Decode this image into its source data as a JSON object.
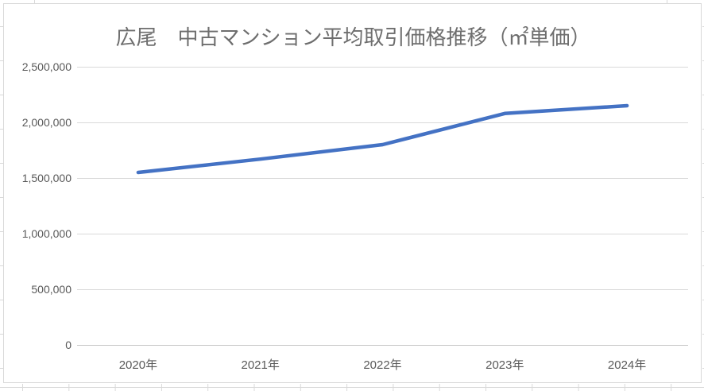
{
  "chart_data": {
    "type": "line",
    "title": "広尾　中古マンション平均取引価格推移（㎡単価）",
    "categories": [
      "2020年",
      "2021年",
      "2022年",
      "2023年",
      "2024年"
    ],
    "values": [
      1550000,
      1670000,
      1800000,
      2080000,
      2150000
    ],
    "xlabel": "",
    "ylabel": "",
    "ylim": [
      0,
      2500000
    ],
    "yticks": [
      {
        "value": 0,
        "label": "0"
      },
      {
        "value": 500000,
        "label": "500,000"
      },
      {
        "value": 1000000,
        "label": "1,000,000"
      },
      {
        "value": 1500000,
        "label": "1,500,000"
      },
      {
        "value": 2000000,
        "label": "2,000,000"
      },
      {
        "value": 2500000,
        "label": "2,500,000"
      }
    ],
    "grid": "horizontal-only",
    "legend": "none",
    "markers": "none",
    "colors": {
      "series_line": "#4472C4",
      "gridline": "#D9D9D9",
      "axis_line": "#C6C6C6",
      "chart_border": "#D9D9D9",
      "title_text": "#6E6E6E",
      "tick_text": "#595959",
      "worksheet_gridline": "#D9D9D9"
    }
  }
}
